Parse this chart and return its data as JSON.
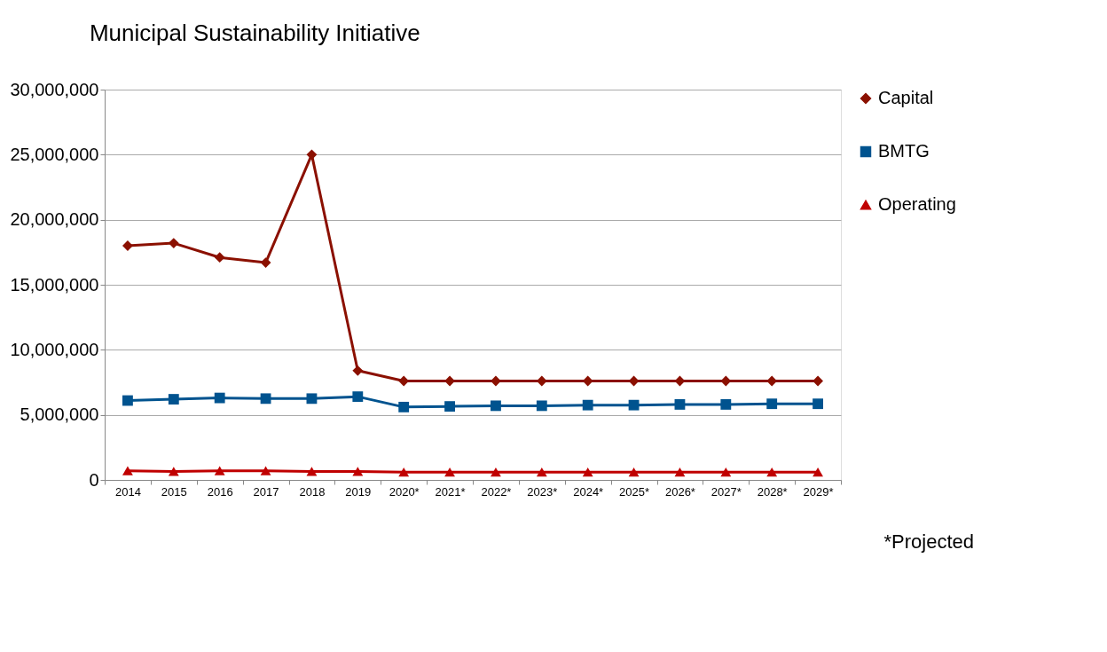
{
  "chart_data": {
    "type": "line",
    "title": "Municipal Sustainability Initiative",
    "categories": [
      "2014",
      "2015",
      "2016",
      "2017",
      "2018",
      "2019",
      "2020*",
      "2021*",
      "2022*",
      "2023*",
      "2024*",
      "2025*",
      "2026*",
      "2027*",
      "2028*",
      "2029*"
    ],
    "series": [
      {
        "name": "Capital",
        "color": "#8b1000",
        "marker": "diamond",
        "values": [
          18000000,
          18200000,
          17100000,
          16700000,
          25000000,
          8400000,
          7600000,
          7600000,
          7600000,
          7600000,
          7600000,
          7600000,
          7600000,
          7600000,
          7600000,
          7600000
        ]
      },
      {
        "name": "BMTG",
        "color": "#00538f",
        "marker": "square",
        "values": [
          6100000,
          6200000,
          6300000,
          6250000,
          6250000,
          6400000,
          5600000,
          5650000,
          5700000,
          5700000,
          5750000,
          5750000,
          5800000,
          5800000,
          5850000,
          5850000
        ]
      },
      {
        "name": "Operating",
        "color": "#c00000",
        "marker": "triangle",
        "values": [
          700000,
          650000,
          700000,
          700000,
          650000,
          650000,
          600000,
          600000,
          600000,
          600000,
          600000,
          600000,
          600000,
          600000,
          600000,
          600000
        ]
      }
    ],
    "ylim": [
      0,
      30000000
    ],
    "yticks": [
      0,
      {
        "value": 5000000,
        "label": "5,000,000"
      },
      {
        "value": 10000000,
        "label": "10,000,000"
      },
      {
        "value": 15000000,
        "label": "15,000,000"
      },
      {
        "value": 20000000,
        "label": "20,000,000"
      },
      {
        "value": 25000000,
        "label": "25,000,000"
      },
      {
        "value": 30000000,
        "label": "30,000,000"
      }
    ],
    "grid": "y",
    "legend": "right",
    "line_style": "solid",
    "annotations": [
      "*Projected"
    ]
  }
}
